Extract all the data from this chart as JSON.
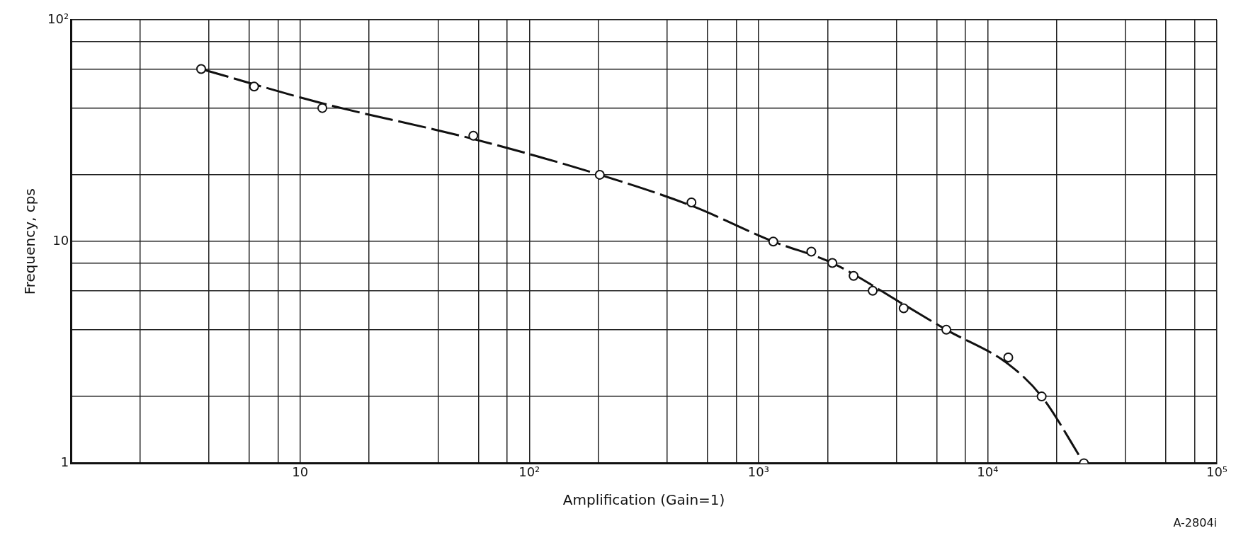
{
  "chart_data": {
    "type": "scatter",
    "xlabel": "Amplification (Gain=1)",
    "ylabel": "Frequency, cps",
    "annotations": [
      "A-2804i"
    ],
    "log": "xy",
    "grid": true,
    "xlim": [
      1,
      100000
    ],
    "ylim": [
      1,
      100
    ],
    "xticks": [
      {
        "value": 2,
        "label": null
      },
      {
        "value": 4,
        "label": null
      },
      {
        "value": 6,
        "label": null
      },
      {
        "value": 8,
        "label": null
      },
      10,
      {
        "value": 20,
        "label": null
      },
      {
        "value": 40,
        "label": null
      },
      {
        "value": 60,
        "label": null
      },
      {
        "value": 80,
        "label": null
      },
      {
        "value": 100,
        "label": "10²"
      },
      {
        "value": 200,
        "label": null
      },
      {
        "value": 400,
        "label": null
      },
      {
        "value": 600,
        "label": null
      },
      {
        "value": 800,
        "label": null
      },
      {
        "value": 1000,
        "label": "10³"
      },
      {
        "value": 2000,
        "label": null
      },
      {
        "value": 4000,
        "label": null
      },
      {
        "value": 6000,
        "label": null
      },
      {
        "value": 8000,
        "label": null
      },
      {
        "value": 10000,
        "label": "10⁴"
      },
      {
        "value": 20000,
        "label": null
      },
      {
        "value": 40000,
        "label": null
      },
      {
        "value": 60000,
        "label": null
      },
      {
        "value": 80000,
        "label": null
      },
      {
        "value": 100000,
        "label": "10⁵"
      }
    ],
    "yticks": [
      1,
      {
        "value": 2,
        "label": null
      },
      {
        "value": 4,
        "label": null
      },
      {
        "value": 6,
        "label": null
      },
      {
        "value": 8,
        "label": null
      },
      10,
      {
        "value": 20,
        "label": null
      },
      {
        "value": 40,
        "label": null
      },
      {
        "value": 60,
        "label": null
      },
      {
        "value": 80,
        "label": null
      },
      {
        "value": 100,
        "label": "10²"
      }
    ],
    "series": [
      {
        "type": "scatter",
        "color": "#111111",
        "marker": "circle",
        "x": [
          3.7,
          6.3,
          12.5,
          57,
          203,
          510,
          1160,
          1700,
          2100,
          2600,
          3150,
          4300,
          6600,
          12300,
          17200,
          26300
        ],
        "values": [
          60,
          50,
          40,
          30,
          20,
          15,
          10,
          9,
          8,
          7,
          6,
          5,
          4,
          3,
          2,
          1
        ]
      },
      {
        "type": "line",
        "color": "#111111",
        "marker": "none",
        "line_style": "dashed",
        "x": [
          3.7,
          12.5,
          57,
          203,
          510,
          1160,
          2100,
          4300,
          6600,
          12300,
          17200,
          26300
        ],
        "values": [
          60,
          42,
          29,
          20,
          14.5,
          10,
          8,
          5.2,
          4,
          2.8,
          2,
          1
        ]
      }
    ]
  }
}
